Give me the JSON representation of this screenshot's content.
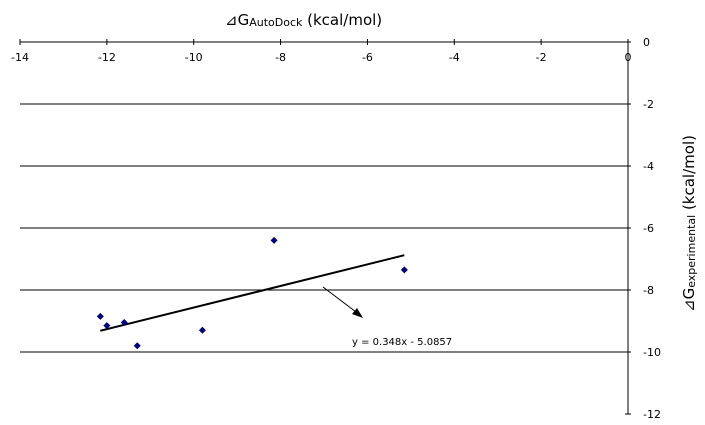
{
  "chart_data": {
    "type": "scatter",
    "title": "",
    "xlabel": {
      "prefix": "⊿G",
      "sub": "AutoDock",
      "suffix": " (kcal/mol)"
    },
    "ylabel": {
      "prefix": "⊿G",
      "sub": "experimental",
      "suffix": " (kcal/mol)"
    },
    "xlim": [
      -14,
      0
    ],
    "ylim": [
      -12,
      0
    ],
    "x_ticks": [
      -14,
      -12,
      -10,
      -8,
      -6,
      -4,
      -2,
      0
    ],
    "y_ticks": [
      0,
      -2,
      -4,
      -6,
      -8,
      -10,
      -12
    ],
    "x_axis_position": "top",
    "y_axis_position": "right",
    "grid": "horizontal",
    "marker_color": "#000080",
    "points": [
      {
        "x": -12.15,
        "y": -8.85
      },
      {
        "x": -12.0,
        "y": -9.15
      },
      {
        "x": -11.6,
        "y": -9.05
      },
      {
        "x": -11.3,
        "y": -9.8
      },
      {
        "x": -9.8,
        "y": -9.3
      },
      {
        "x": -8.15,
        "y": -6.4
      },
      {
        "x": -5.15,
        "y": -7.35
      }
    ],
    "trendline": {
      "slope": 0.348,
      "intercept": -5.0857,
      "x_range": [
        -12.15,
        -5.15
      ],
      "equation_label": "y = 0.348x - 5.0857"
    }
  }
}
